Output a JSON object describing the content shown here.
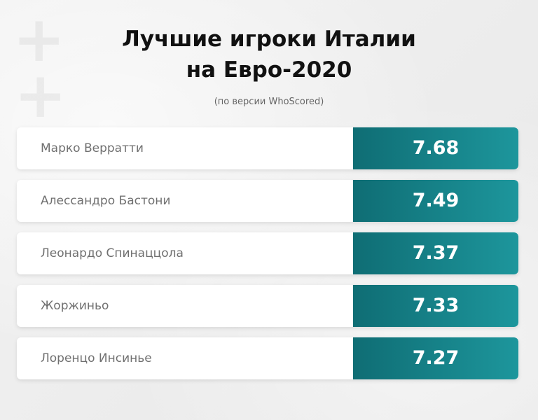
{
  "title_line1": "Лучшие игроки Италии",
  "title_line2": "на Евро-2020",
  "subtitle": "(по версии WhoScored)",
  "colors": {
    "score_gradient_start": "#0f6d74",
    "score_gradient_end": "#1d969c",
    "row_background": "#ffffff",
    "name_text": "#707070",
    "title_text": "#111111"
  },
  "chart_data": {
    "type": "table",
    "title": "Лучшие игроки Италии на Евро-2020",
    "subtitle": "(по версии WhoScored)",
    "columns": [],
    "rows": [
      {
        "name": "Марко Верратти",
        "score": "7.68"
      },
      {
        "name": "Алессандро Бастони",
        "score": "7.49"
      },
      {
        "name": "Леонардо Спинаццола",
        "score": "7.37"
      },
      {
        "name": "Жоржиньо",
        "score": "7.33"
      },
      {
        "name": "Лоренцо Инсинье",
        "score": "7.27"
      }
    ]
  }
}
